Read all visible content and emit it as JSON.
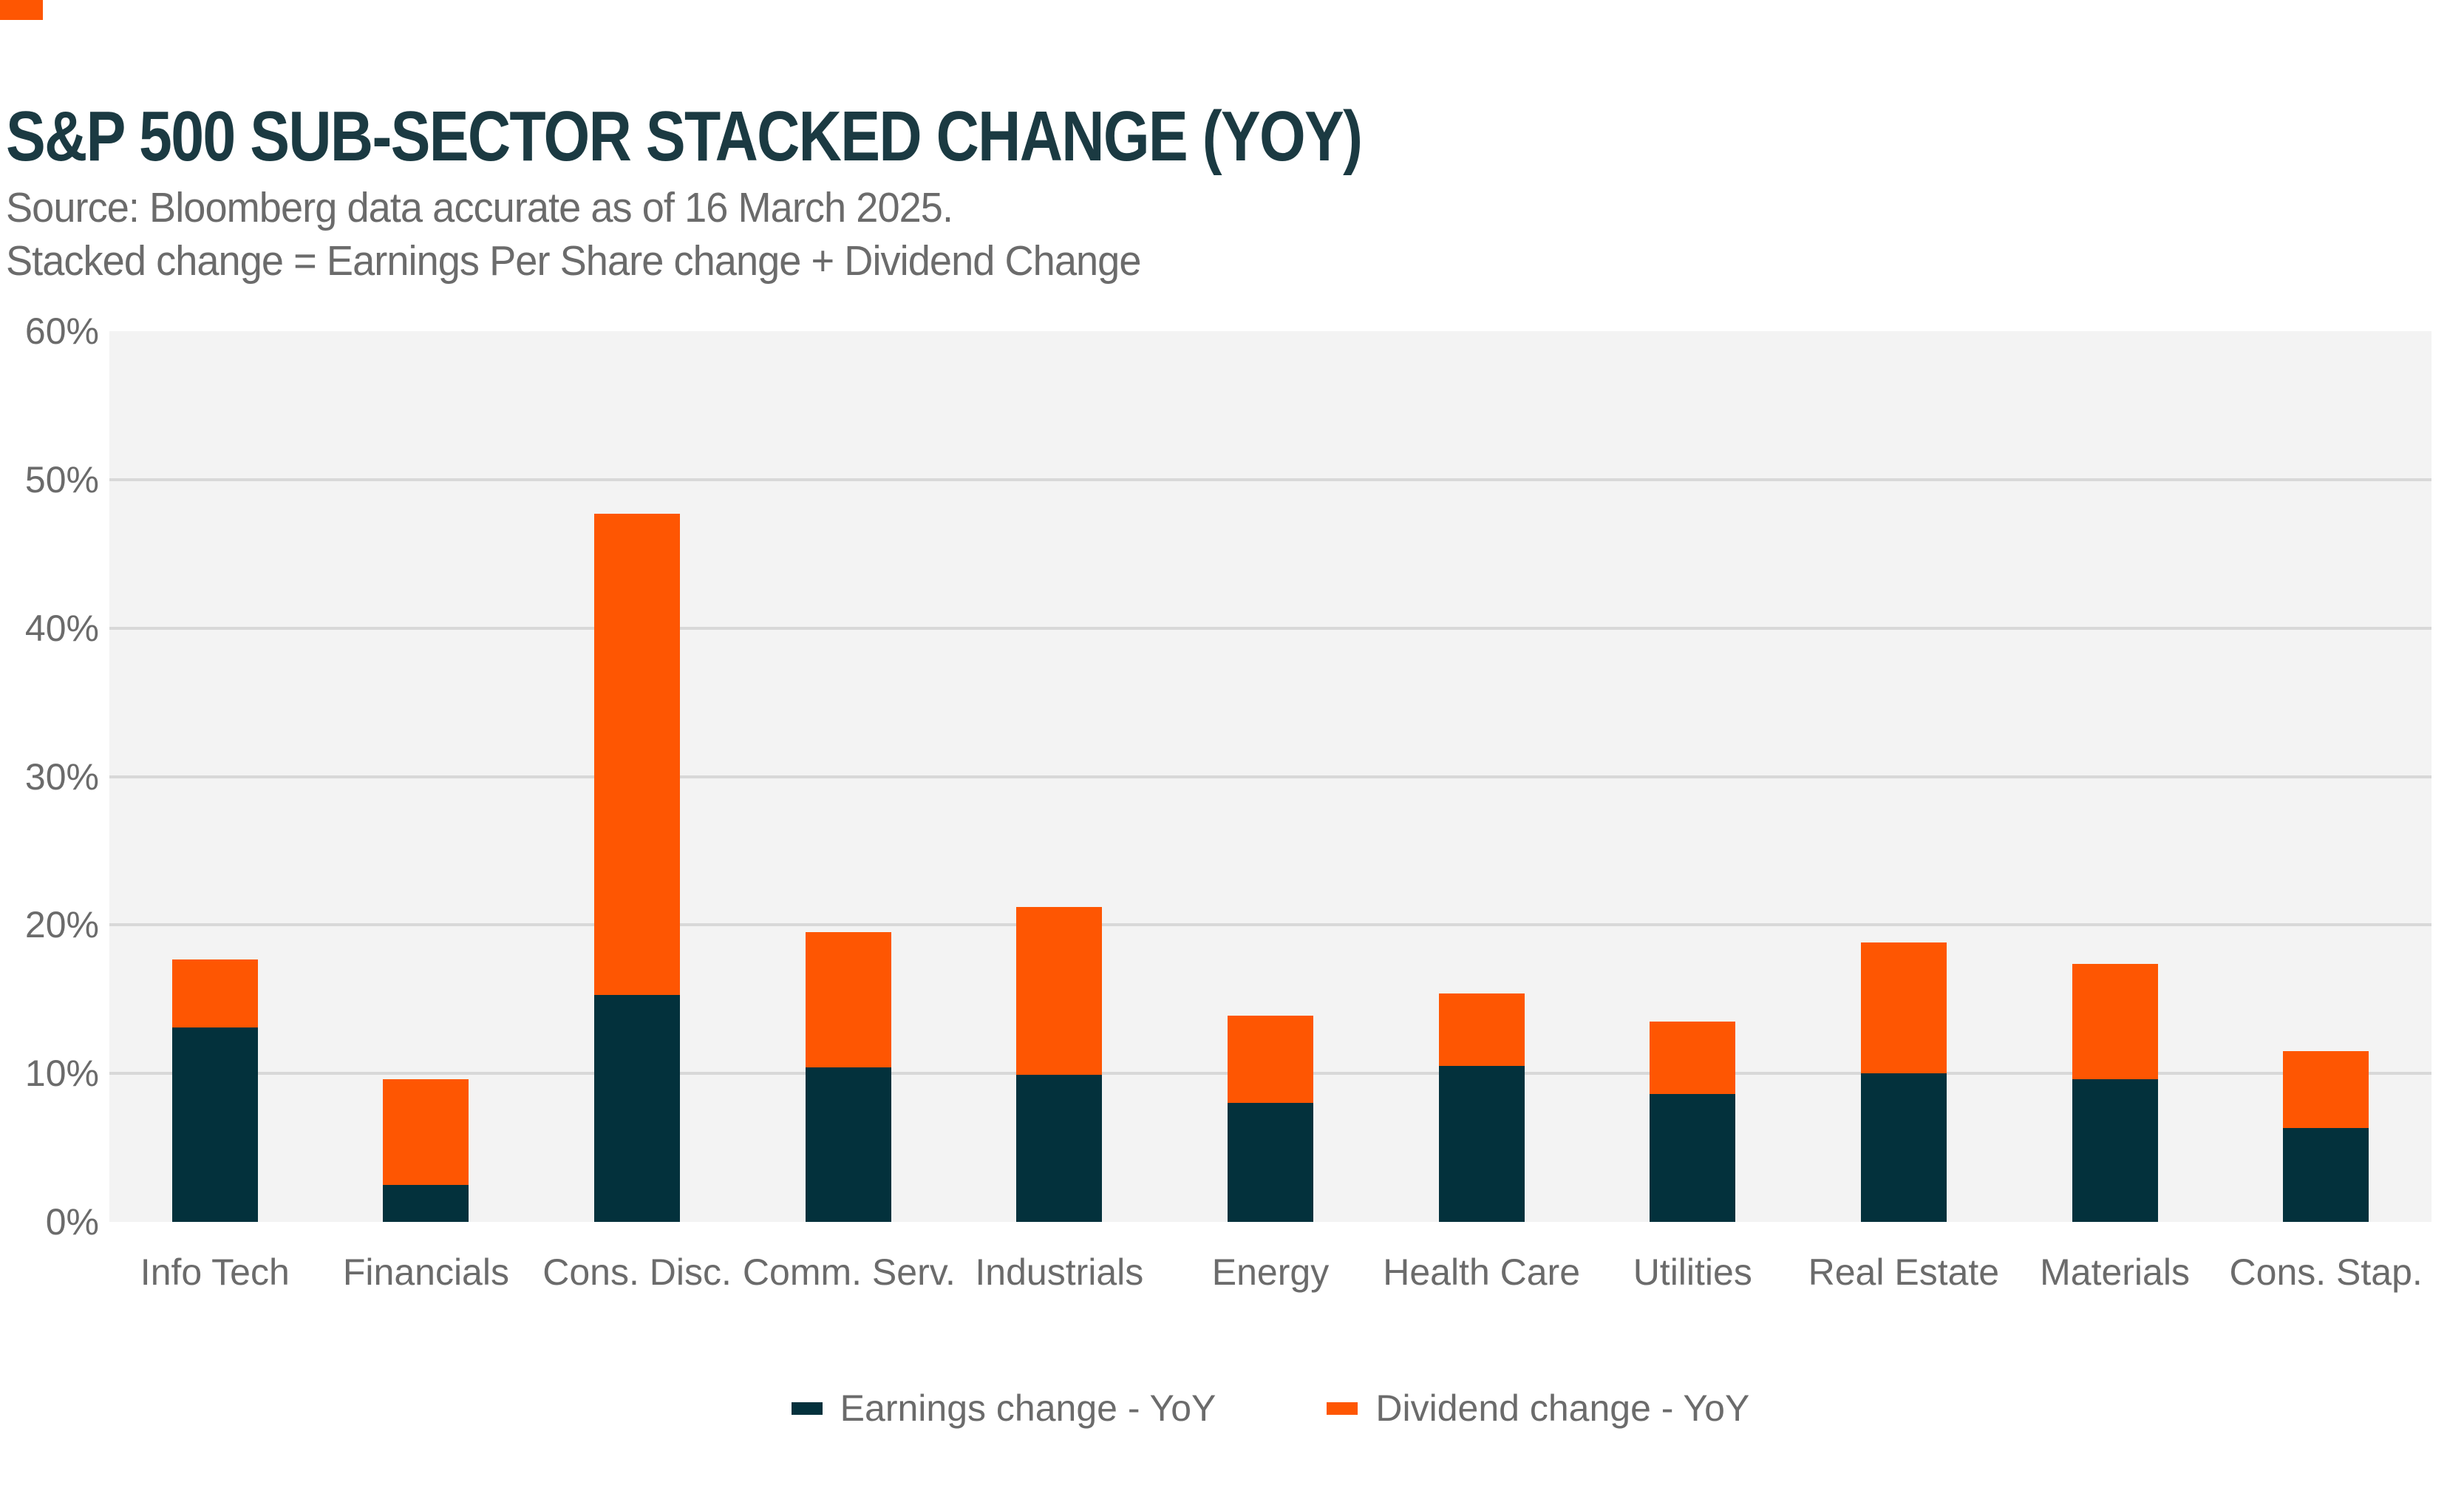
{
  "header": {
    "title": "S&P 500 SUB-SECTOR STACKED CHANGE (YOY)",
    "source_line": "Source: Bloomberg data accurate as of 16 March 2025.",
    "note_line": "Stacked change = Earnings Per Share change + Dividend Change"
  },
  "colors": {
    "accent_orange": "#fe5602",
    "earnings_navy": "#03313c",
    "title_navy": "#1b3a42",
    "text_gray": "#6b6b6b",
    "plot_bg": "#f3f3f3",
    "gridline": "#d8d8d8",
    "page_bg": "#ffffff"
  },
  "chart_data": {
    "type": "bar",
    "stacked": true,
    "title": "S&P 500 SUB-SECTOR STACKED CHANGE (YOY)",
    "categories": [
      "Info Tech",
      "Financials",
      "Cons. Disc.",
      "Comm. Serv.",
      "Industrials",
      "Energy",
      "Health Care",
      "Utilities",
      "Real Estate",
      "Materials",
      "Cons. Stap."
    ],
    "series": [
      {
        "name": "Earnings change - YoY",
        "color_key": "earnings_navy",
        "values": [
          13.1,
          2.5,
          15.3,
          10.4,
          9.9,
          8.0,
          10.5,
          8.6,
          10.0,
          9.6,
          6.3
        ]
      },
      {
        "name": "Dividend change - YoY",
        "color_key": "accent_orange",
        "values": [
          4.6,
          7.1,
          32.4,
          9.1,
          11.3,
          5.9,
          4.9,
          4.9,
          8.8,
          7.8,
          5.2
        ]
      }
    ],
    "stacked_totals": [
      17.7,
      9.6,
      47.7,
      19.5,
      21.2,
      13.9,
      15.4,
      13.5,
      18.8,
      17.4,
      11.5
    ],
    "xlabel": "",
    "ylabel": "",
    "y_ticks": [
      "0%",
      "10%",
      "20%",
      "30%",
      "40%",
      "50%",
      "60%"
    ],
    "ylim": [
      0,
      60
    ],
    "grid": "horizontal",
    "legend_position": "bottom"
  }
}
